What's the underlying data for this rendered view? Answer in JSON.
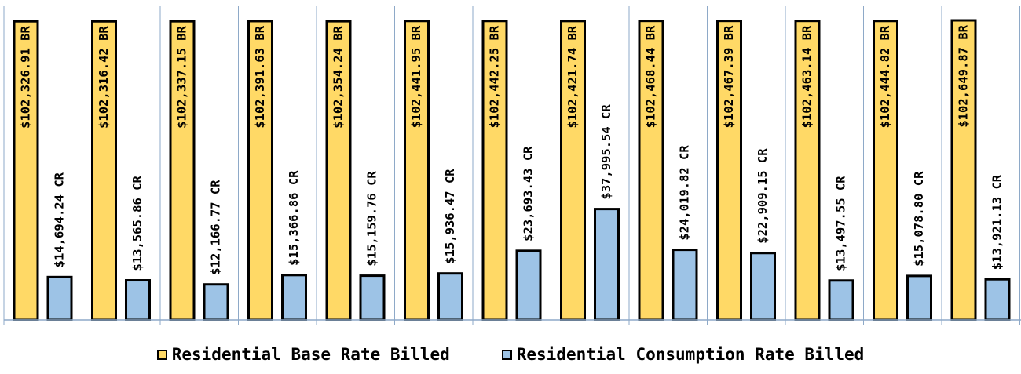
{
  "chart_data": {
    "type": "bar",
    "categories": [
      "",
      "",
      "",
      "",
      "",
      "",
      "",
      "",
      "",
      "",
      "",
      "",
      ""
    ],
    "series": [
      {
        "name": "Residential Base Rate Billed",
        "color": "#FFD966",
        "values": [
          102326.91,
          102316.42,
          102337.15,
          102391.63,
          102354.24,
          102441.95,
          102442.25,
          102421.74,
          102468.44,
          102467.39,
          102463.14,
          102444.82,
          102649.87
        ],
        "labels": [
          "$102,326.91 BR",
          "$102,316.42 BR",
          "$102,337.15 BR",
          "$102,391.63 BR",
          "$102,354.24 BR",
          "$102,441.95 BR",
          "$102,442.25 BR",
          "$102,421.74 BR",
          "$102,468.44 BR",
          "$102,467.39 BR",
          "$102,463.14 BR",
          "$102,444.82 BR",
          "$102,649.87 BR"
        ]
      },
      {
        "name": "Residential Consumption Rate Billed",
        "color": "#9DC3E6",
        "values": [
          14694.24,
          13565.86,
          12166.77,
          15366.86,
          15159.76,
          15936.47,
          23693.43,
          37995.54,
          24019.82,
          22909.15,
          13497.55,
          15078.8,
          13921.13
        ],
        "labels": [
          "$14,694.24 CR",
          "$13,565.86 CR",
          "$12,166.77 CR",
          "$15,366.86 CR",
          "$15,159.76 CR",
          "$15,936.47 CR",
          "$23,693.43 CR",
          "$37,995.54 CR",
          "$24,019.82 CR",
          "$22,909.15 CR",
          "$13,497.55 CR",
          "$15,078.80 CR",
          "$13,921.13 CR"
        ]
      }
    ],
    "ylim": [
      0,
      102649.87
    ],
    "grid": false,
    "legend_position": "bottom"
  }
}
